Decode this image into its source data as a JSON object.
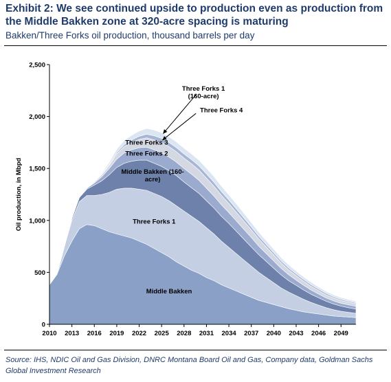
{
  "header": {
    "title": "Exhibit 2: We see continued upside to production even as production from the Middle Bakken zone at 320-acre spacing is maturing",
    "subtitle": "Bakken/Three Forks oil production, thousand barrels per day"
  },
  "footer": {
    "source": "Source: IHS, NDIC Oil and Gas Division, DNRC Montana Board Oil and Gas, Company data, Goldman Sachs Global Investment Research"
  },
  "chart_data": {
    "type": "area",
    "stacked": true,
    "ylabel": "Oil production, in Mbpd",
    "xlabel": "",
    "xlim": [
      2010,
      2051
    ],
    "ylim": [
      0,
      2500
    ],
    "x_ticks": [
      "2010",
      "2013",
      "2016",
      "2019",
      "2022",
      "2025",
      "2028",
      "2031",
      "2034",
      "2037",
      "2040",
      "2043",
      "2046",
      "2049"
    ],
    "y_ticks": [
      "0",
      "500",
      "1,000",
      "1,500",
      "2,000",
      "2,500"
    ],
    "x": [
      2010,
      2011,
      2012,
      2013,
      2014,
      2015,
      2016,
      2017,
      2018,
      2019,
      2020,
      2021,
      2022,
      2023,
      2024,
      2025,
      2026,
      2027,
      2028,
      2029,
      2030,
      2031,
      2032,
      2033,
      2034,
      2035,
      2036,
      2037,
      2038,
      2039,
      2040,
      2041,
      2042,
      2043,
      2044,
      2045,
      2046,
      2047,
      2048,
      2049,
      2050,
      2051
    ],
    "series": [
      {
        "name": "Middle Bakken",
        "color": "#8aa0c6",
        "values": [
          380,
          480,
          660,
          800,
          920,
          960,
          950,
          920,
          890,
          870,
          850,
          830,
          800,
          770,
          730,
          690,
          650,
          600,
          560,
          520,
          490,
          450,
          420,
          380,
          350,
          320,
          290,
          260,
          230,
          210,
          190,
          170,
          150,
          135,
          120,
          110,
          100,
          90,
          80,
          75,
          70,
          65
        ]
      },
      {
        "name": "Three Forks 1",
        "color": "#c4cfe3",
        "values": [
          0,
          0,
          90,
          200,
          260,
          280,
          290,
          330,
          380,
          430,
          460,
          480,
          500,
          520,
          530,
          540,
          540,
          540,
          530,
          520,
          500,
          480,
          450,
          420,
          390,
          360,
          330,
          300,
          270,
          240,
          210,
          180,
          160,
          140,
          120,
          100,
          85,
          70,
          60,
          50,
          45,
          40
        ]
      },
      {
        "name": "Middle Bakken (160-acre)",
        "color": "#6e81aa",
        "values": [
          0,
          0,
          0,
          20,
          40,
          60,
          100,
          130,
          170,
          210,
          240,
          260,
          280,
          290,
          290,
          290,
          290,
          290,
          280,
          275,
          270,
          260,
          250,
          240,
          230,
          215,
          200,
          185,
          170,
          155,
          140,
          125,
          110,
          100,
          90,
          80,
          70,
          62,
          55,
          50,
          45,
          42
        ]
      },
      {
        "name": "Three Forks 2",
        "color": "#9aabcf",
        "values": [
          0,
          0,
          0,
          0,
          0,
          10,
          20,
          40,
          60,
          80,
          100,
          110,
          120,
          125,
          130,
          130,
          130,
          130,
          130,
          130,
          125,
          120,
          115,
          110,
          105,
          100,
          95,
          90,
          82,
          75,
          70,
          63,
          57,
          50,
          45,
          40,
          36,
          32,
          30,
          28,
          27,
          26
        ]
      },
      {
        "name": "Three Forks 3",
        "color": "#d3d8e3",
        "values": [
          0,
          0,
          0,
          0,
          0,
          0,
          10,
          20,
          30,
          50,
          60,
          70,
          80,
          90,
          95,
          100,
          100,
          100,
          100,
          100,
          100,
          98,
          95,
          92,
          88,
          84,
          80,
          75,
          70,
          64,
          58,
          52,
          47,
          43,
          39,
          36,
          33,
          30,
          28,
          26,
          25,
          24
        ]
      },
      {
        "name": "Three Forks 4",
        "color": "#a8b6d6",
        "values": [
          0,
          0,
          0,
          0,
          0,
          0,
          0,
          5,
          10,
          15,
          20,
          25,
          30,
          35,
          40,
          40,
          40,
          40,
          40,
          40,
          40,
          40,
          38,
          36,
          34,
          32,
          30,
          28,
          26,
          24,
          22,
          20,
          19,
          18,
          17,
          16,
          15,
          14,
          13,
          12,
          11,
          10
        ]
      },
      {
        "name": "Three Forks 1 (160-acre)",
        "color": "#dce6f3",
        "values": [
          0,
          0,
          0,
          0,
          0,
          0,
          0,
          10,
          20,
          30,
          40,
          45,
          50,
          55,
          55,
          55,
          55,
          55,
          55,
          55,
          55,
          55,
          55,
          52,
          50,
          48,
          45,
          42,
          40,
          37,
          34,
          31,
          29,
          27,
          25,
          23,
          21,
          19,
          18,
          17,
          16,
          15
        ]
      }
    ],
    "annotations": [
      {
        "text": "Middle Bakken",
        "series": "Middle Bakken"
      },
      {
        "text": "Three Forks 1",
        "series": "Three Forks 1"
      },
      {
        "text": "Middle Bakken (160-acre)",
        "series": "Middle Bakken (160-acre)"
      },
      {
        "text": "Three Forks 2",
        "series": "Three Forks 2"
      },
      {
        "text": "Three Forks 3",
        "series": "Three Forks 3"
      },
      {
        "text": "Three Forks 4",
        "series": "Three Forks 4",
        "callout": true
      },
      {
        "text": "Three Forks 1 (160-acre)",
        "series": "Three Forks 1 (160-acre)",
        "callout": true
      }
    ]
  }
}
